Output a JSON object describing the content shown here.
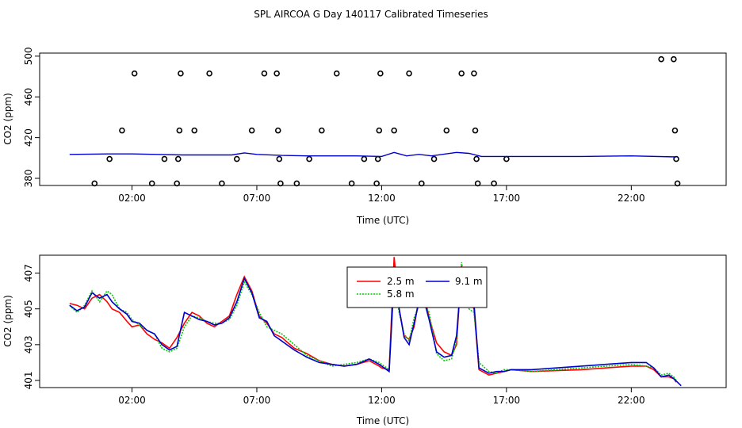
{
  "title": "SPL AIRCOA G  Day 140117  Calibrated Timeseries",
  "colors": {
    "line_2_5": "#ff0000",
    "line_5_8": "#00cc00",
    "line_9_1": "#0000cc",
    "axis": "#000000"
  },
  "chart_data": [
    {
      "type": "scatter",
      "title": "",
      "xlabel": "Time (UTC)",
      "ylabel": "CO2 (ppm)",
      "xlim": [
        -1.7,
        25.8
      ],
      "ylim": [
        373,
        503
      ],
      "x_ticks": [
        2,
        7,
        12,
        17,
        22
      ],
      "x_tick_labels": [
        "02:00",
        "07:00",
        "12:00",
        "17:00",
        "22:00"
      ],
      "y_ticks": [
        380,
        420,
        460,
        500
      ],
      "y_tick_labels": [
        "380",
        "420",
        "460",
        "500"
      ],
      "points": [
        {
          "x": 0.5,
          "y": 375
        },
        {
          "x": 1.1,
          "y": 399
        },
        {
          "x": 1.6,
          "y": 427
        },
        {
          "x": 2.1,
          "y": 483
        },
        {
          "x": 2.8,
          "y": 375
        },
        {
          "x": 3.3,
          "y": 399
        },
        {
          "x": 3.8,
          "y": 375
        },
        {
          "x": 3.85,
          "y": 399
        },
        {
          "x": 3.9,
          "y": 427
        },
        {
          "x": 3.95,
          "y": 483
        },
        {
          "x": 4.5,
          "y": 427
        },
        {
          "x": 5.1,
          "y": 483
        },
        {
          "x": 5.6,
          "y": 375
        },
        {
          "x": 6.2,
          "y": 399
        },
        {
          "x": 6.8,
          "y": 427
        },
        {
          "x": 7.3,
          "y": 483
        },
        {
          "x": 7.8,
          "y": 483
        },
        {
          "x": 7.85,
          "y": 427
        },
        {
          "x": 7.9,
          "y": 399
        },
        {
          "x": 7.95,
          "y": 375
        },
        {
          "x": 8.6,
          "y": 375
        },
        {
          "x": 9.1,
          "y": 399
        },
        {
          "x": 9.6,
          "y": 427
        },
        {
          "x": 10.2,
          "y": 483
        },
        {
          "x": 10.8,
          "y": 375
        },
        {
          "x": 11.3,
          "y": 399
        },
        {
          "x": 11.8,
          "y": 375
        },
        {
          "x": 11.85,
          "y": 399
        },
        {
          "x": 11.9,
          "y": 427
        },
        {
          "x": 11.95,
          "y": 483
        },
        {
          "x": 12.5,
          "y": 427
        },
        {
          "x": 13.1,
          "y": 483
        },
        {
          "x": 13.6,
          "y": 375
        },
        {
          "x": 14.1,
          "y": 399
        },
        {
          "x": 14.6,
          "y": 427
        },
        {
          "x": 15.2,
          "y": 483
        },
        {
          "x": 15.7,
          "y": 483
        },
        {
          "x": 15.75,
          "y": 427
        },
        {
          "x": 15.8,
          "y": 399
        },
        {
          "x": 15.85,
          "y": 375
        },
        {
          "x": 16.5,
          "y": 375
        },
        {
          "x": 17.0,
          "y": 399
        },
        {
          "x": 23.2,
          "y": 497
        },
        {
          "x": 23.7,
          "y": 497
        },
        {
          "x": 23.75,
          "y": 427
        },
        {
          "x": 23.8,
          "y": 399
        },
        {
          "x": 23.85,
          "y": 375
        }
      ],
      "line": {
        "name": "mean",
        "color": "#0000cc",
        "x": [
          -0.5,
          1,
          2,
          3,
          4,
          5,
          6,
          6.5,
          7,
          8,
          9,
          10,
          11,
          12,
          12.5,
          13,
          13.5,
          14,
          15,
          15.5,
          16,
          17,
          20,
          22,
          23.8
        ],
        "y": [
          403.5,
          404,
          404,
          403.5,
          403,
          403,
          403,
          405,
          403.5,
          402.5,
          402,
          402,
          402,
          401.5,
          405.5,
          402,
          403.5,
          402,
          405.5,
          404.5,
          401.5,
          401.5,
          401.5,
          402,
          401
        ]
      }
    },
    {
      "type": "line",
      "title": "",
      "xlabel": "Time (UTC)",
      "ylabel": "CO2 (ppm)",
      "xlim": [
        -1.7,
        25.8
      ],
      "ylim": [
        400.6,
        408.0
      ],
      "x_ticks": [
        2,
        7,
        12,
        17,
        22
      ],
      "x_tick_labels": [
        "02:00",
        "07:00",
        "12:00",
        "17:00",
        "22:00"
      ],
      "y_ticks": [
        401,
        403,
        405,
        407
      ],
      "y_tick_labels": [
        "401",
        "403",
        "405",
        "407"
      ],
      "legend": {
        "position": "top-center",
        "labels": [
          "2.5 m",
          "5.8 m",
          "9.1 m"
        ]
      },
      "series": [
        {
          "name": "2.5 m",
          "color": "#ff0000",
          "x": [
            -0.5,
            -0.2,
            0.1,
            0.4,
            0.7,
            1.0,
            1.2,
            1.5,
            1.8,
            2.0,
            2.3,
            2.6,
            2.9,
            3.2,
            3.5,
            3.8,
            4.1,
            4.4,
            4.7,
            5.0,
            5.3,
            5.6,
            5.9,
            6.2,
            6.5,
            6.8,
            7.1,
            7.4,
            7.7,
            8.0,
            8.5,
            9.0,
            9.5,
            10.0,
            10.5,
            11.0,
            11.5,
            11.9,
            12.0,
            12.3,
            12.5,
            12.7,
            12.9,
            13.1,
            13.3,
            13.6,
            13.9,
            14.2,
            14.5,
            14.8,
            15.0,
            15.2,
            15.5,
            15.7,
            15.9,
            16.3,
            16.6,
            16.9,
            17.2,
            18,
            20,
            22,
            22.6,
            22.9,
            23.2,
            23.5,
            23.7,
            23.8
          ],
          "y": [
            405.3,
            405.2,
            405.0,
            405.6,
            405.8,
            405.4,
            405.0,
            404.8,
            404.3,
            404.0,
            404.1,
            403.6,
            403.3,
            403.1,
            402.8,
            403.4,
            404.2,
            404.8,
            404.6,
            404.2,
            404.0,
            404.3,
            404.6,
            405.8,
            406.8,
            406.0,
            404.6,
            404.2,
            403.6,
            403.4,
            402.8,
            402.5,
            402.1,
            401.9,
            401.8,
            401.9,
            402.1,
            401.8,
            401.7,
            401.6,
            407.9,
            405.0,
            403.5,
            403.3,
            404.0,
            406.5,
            404.5,
            403.1,
            402.6,
            402.4,
            403.0,
            407.4,
            405.5,
            405.0,
            401.6,
            401.3,
            401.4,
            401.5,
            401.6,
            401.5,
            401.6,
            401.8,
            401.8,
            401.6,
            401.2,
            401.2,
            401.1,
            400.9
          ]
        },
        {
          "name": "5.8 m",
          "color": "#00cc00",
          "x": [
            -0.5,
            -0.2,
            0.1,
            0.4,
            0.7,
            1.0,
            1.2,
            1.5,
            1.8,
            2.0,
            2.3,
            2.6,
            2.9,
            3.2,
            3.5,
            3.8,
            4.1,
            4.4,
            4.7,
            5.0,
            5.3,
            5.6,
            5.9,
            6.2,
            6.5,
            6.8,
            7.1,
            7.4,
            7.7,
            8.0,
            8.5,
            9.0,
            9.5,
            10.0,
            10.5,
            11.0,
            11.5,
            11.9,
            12.0,
            12.3,
            12.5,
            12.7,
            12.9,
            13.1,
            13.3,
            13.6,
            13.9,
            14.2,
            14.5,
            14.8,
            15.0,
            15.2,
            15.5,
            15.7,
            15.9,
            16.3,
            16.6,
            16.9,
            17.2,
            18,
            20,
            22,
            22.6,
            22.9,
            23.2,
            23.5,
            23.7,
            23.8
          ],
          "y": [
            405.2,
            404.8,
            405.2,
            406.0,
            405.4,
            406.0,
            405.8,
            405.0,
            404.8,
            404.4,
            404.1,
            403.8,
            403.6,
            402.8,
            402.6,
            402.8,
            404.0,
            404.6,
            404.5,
            404.3,
            404.2,
            404.2,
            404.4,
            405.2,
            406.5,
            405.8,
            404.8,
            404.0,
            403.8,
            403.6,
            403.0,
            402.4,
            402.1,
            401.8,
            401.9,
            402.0,
            402.2,
            402.0,
            401.9,
            401.6,
            406.8,
            404.8,
            403.6,
            403.2,
            404.5,
            405.6,
            404.8,
            402.5,
            402.1,
            402.2,
            403.2,
            407.6,
            405.0,
            404.8,
            402.0,
            401.5,
            401.4,
            401.6,
            401.6,
            401.5,
            401.7,
            401.9,
            401.8,
            401.7,
            401.3,
            401.4,
            401.2,
            401.0
          ]
        },
        {
          "name": "9.1 m",
          "color": "#0000cc",
          "x": [
            -0.5,
            -0.2,
            0.1,
            0.4,
            0.7,
            1.0,
            1.2,
            1.5,
            1.8,
            2.0,
            2.3,
            2.6,
            2.9,
            3.2,
            3.5,
            3.8,
            4.1,
            4.4,
            4.7,
            5.0,
            5.3,
            5.6,
            5.9,
            6.2,
            6.5,
            6.8,
            7.1,
            7.4,
            7.7,
            8.0,
            8.5,
            9.0,
            9.5,
            10.0,
            10.5,
            11.0,
            11.5,
            11.9,
            12.0,
            12.3,
            12.5,
            12.7,
            12.9,
            13.1,
            13.3,
            13.6,
            13.9,
            14.2,
            14.5,
            14.8,
            15.0,
            15.2,
            15.5,
            15.7,
            15.9,
            16.3,
            16.6,
            16.9,
            17.2,
            18,
            20,
            22,
            22.6,
            22.9,
            23.2,
            23.5,
            23.7,
            24.0
          ],
          "y": [
            405.2,
            404.9,
            405.1,
            405.9,
            405.6,
            405.8,
            405.4,
            405.0,
            404.7,
            404.3,
            404.2,
            403.8,
            403.6,
            403.0,
            402.7,
            402.9,
            404.8,
            404.6,
            404.4,
            404.3,
            404.1,
            404.2,
            404.5,
            405.4,
            406.7,
            405.9,
            404.5,
            404.3,
            403.5,
            403.2,
            402.7,
            402.3,
            402.0,
            401.9,
            401.8,
            401.9,
            402.2,
            401.9,
            401.8,
            401.5,
            406.8,
            405.0,
            403.4,
            403.0,
            404.2,
            406.0,
            404.4,
            402.6,
            402.3,
            402.4,
            403.5,
            407.0,
            405.2,
            405.3,
            401.7,
            401.4,
            401.5,
            401.5,
            401.6,
            401.6,
            401.8,
            402.0,
            402.0,
            401.7,
            401.2,
            401.3,
            401.1,
            400.7
          ]
        }
      ]
    }
  ]
}
